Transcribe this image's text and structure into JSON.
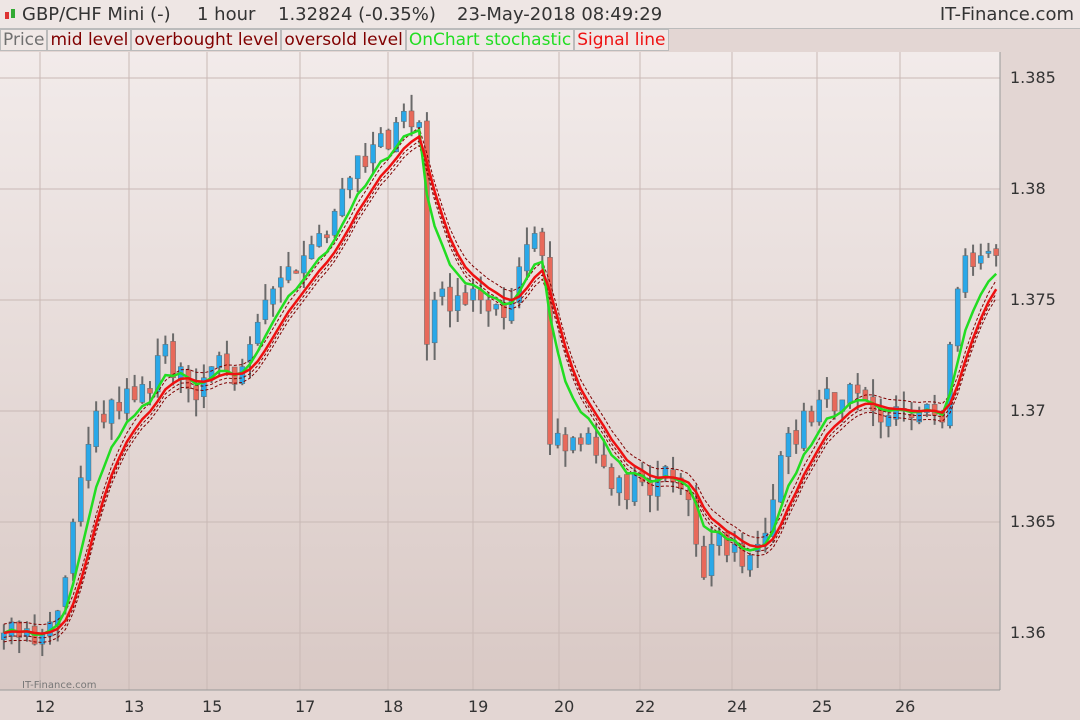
{
  "header": {
    "instrument": "GBP/CHF Mini (-)",
    "timeframe": "1 hour",
    "quote": "1.32824 (-0.35%)",
    "datetime": "23-May-2018 08:49:29",
    "brand": "IT-Finance.com",
    "icon": "candlestick-icon"
  },
  "legend": [
    {
      "label": "Price",
      "color": "#707070"
    },
    {
      "label": "mid level",
      "color": "#800000"
    },
    {
      "label": "overbought level",
      "color": "#800000"
    },
    {
      "label": "oversold level",
      "color": "#800000"
    },
    {
      "label": "OnChart stochastic",
      "color": "#22dd22"
    },
    {
      "label": "Signal line",
      "color": "#ee1111"
    }
  ],
  "watermark": "IT-Finance.com",
  "chart_data": {
    "type": "candlestick",
    "x_ticks": [
      "12",
      "13",
      "15",
      "17",
      "18",
      "19",
      "20",
      "22",
      "24",
      "25",
      "26"
    ],
    "y_ticks": [
      "1.36",
      "1.365",
      "1.37",
      "1.375",
      "1.38",
      "1.385"
    ],
    "ylim": [
      1.3575,
      1.3865
    ],
    "grid": true,
    "colors": {
      "up": "#2aa8e8",
      "down": "#e8695a",
      "wick": "#6a6a6a",
      "stochastic": "#22dd22",
      "signal": "#ee1111",
      "levels": "#800000"
    },
    "closes": [
      1.36,
      1.3605,
      1.3598,
      1.3602,
      1.3595,
      1.36,
      1.3605,
      1.361,
      1.3625,
      1.365,
      1.367,
      1.3685,
      1.37,
      1.3695,
      1.3705,
      1.37,
      1.371,
      1.3705,
      1.3712,
      1.3708,
      1.3725,
      1.373,
      1.3715,
      1.372,
      1.371,
      1.3705,
      1.3715,
      1.372,
      1.3725,
      1.3718,
      1.3712,
      1.372,
      1.373,
      1.374,
      1.375,
      1.3755,
      1.376,
      1.3765,
      1.3762,
      1.377,
      1.3775,
      1.378,
      1.3778,
      1.379,
      1.38,
      1.3805,
      1.3815,
      1.381,
      1.382,
      1.3825,
      1.3818,
      1.383,
      1.3835,
      1.3828,
      1.383,
      1.373,
      1.375,
      1.3755,
      1.3745,
      1.3752,
      1.3748,
      1.3755,
      1.375,
      1.3745,
      1.3748,
      1.3742,
      1.375,
      1.3765,
      1.3775,
      1.378,
      1.377,
      1.3685,
      1.369,
      1.3682,
      1.3688,
      1.3685,
      1.369,
      1.368,
      1.3675,
      1.3665,
      1.367,
      1.366,
      1.3672,
      1.3668,
      1.3662,
      1.367,
      1.3675,
      1.3668,
      1.3665,
      1.366,
      1.364,
      1.3625,
      1.364,
      1.3645,
      1.3635,
      1.364,
      1.363,
      1.3635,
      1.364,
      1.3645,
      1.366,
      1.368,
      1.369,
      1.3685,
      1.37,
      1.3695,
      1.3705,
      1.371,
      1.37,
      1.3705,
      1.3712,
      1.3708,
      1.3705,
      1.37,
      1.3695,
      1.3698,
      1.3702,
      1.37,
      1.3697,
      1.37,
      1.3703,
      1.3698,
      1.3695,
      1.373,
      1.3755,
      1.377,
      1.3765,
      1.377,
      1.3772,
      1.377
    ]
  }
}
